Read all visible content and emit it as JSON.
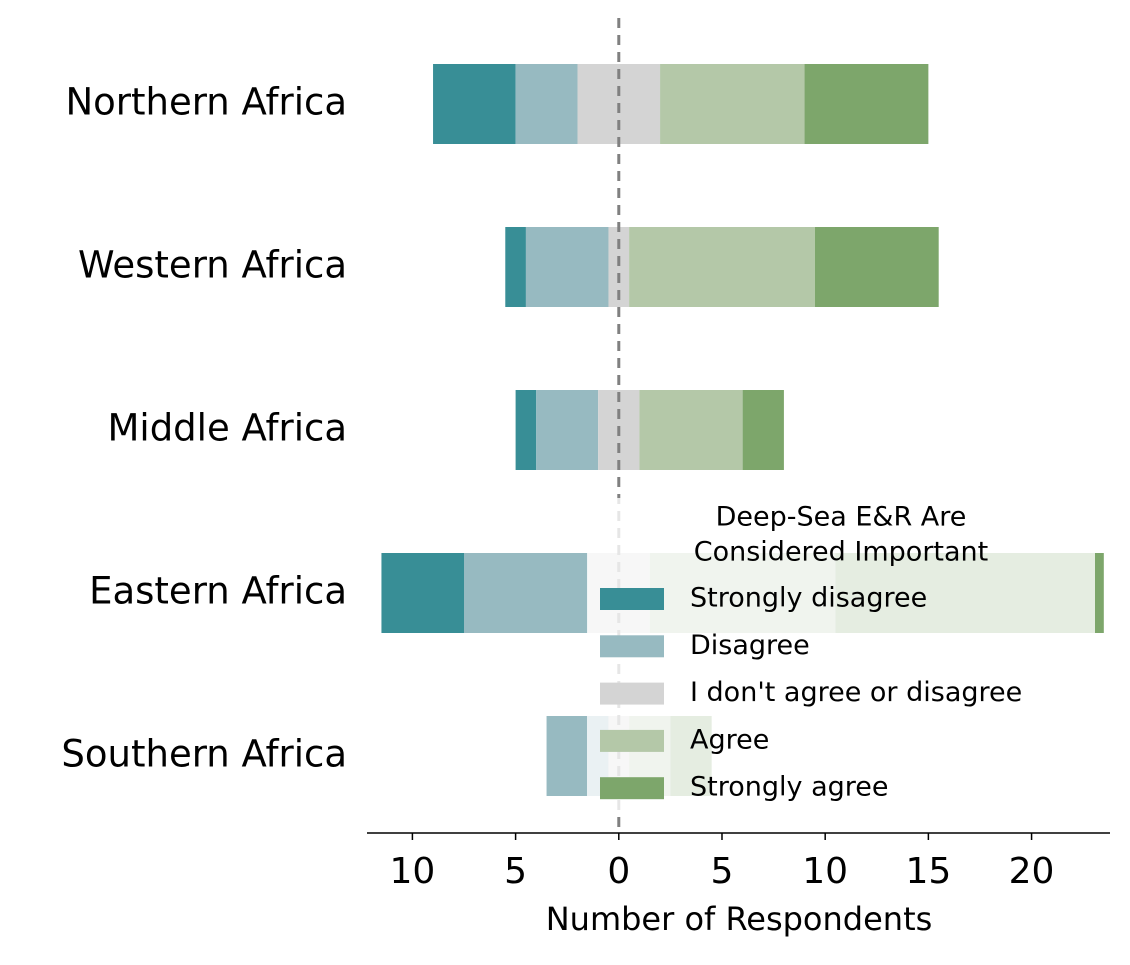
{
  "chart_data": {
    "type": "diverging_bar",
    "xlabel": "Number of Respondents",
    "categories": [
      "Northern Africa",
      "Western Africa",
      "Middle Africa",
      "Eastern Africa",
      "Southern Africa"
    ],
    "series": [
      {
        "name": "Strongly disagree",
        "color": "#388e96",
        "values": [
          4,
          1,
          1,
          4,
          0
        ]
      },
      {
        "name": "Disagree",
        "color": "#97bac1",
        "values": [
          3,
          4,
          3,
          6,
          3
        ]
      },
      {
        "name": "I don't agree or disagree",
        "color": "#d4d4d4",
        "values": [
          4,
          1,
          2,
          3,
          1
        ]
      },
      {
        "name": "Agree",
        "color": "#b4c8a8",
        "values": [
          7,
          9,
          5,
          9,
          2
        ]
      },
      {
        "name": "Strongly agree",
        "color": "#7da66b",
        "values": [
          6,
          6,
          2,
          13,
          2
        ]
      }
    ],
    "xlim": [
      -12.2,
      23.8
    ],
    "xticks": [
      {
        "value": -10,
        "label": "10"
      },
      {
        "value": -5,
        "label": "5"
      },
      0,
      5,
      10,
      15,
      20
    ],
    "legend_title": [
      "Deep-Sea E&R Are",
      "Considered Important"
    ],
    "legend_position": "lower right"
  }
}
